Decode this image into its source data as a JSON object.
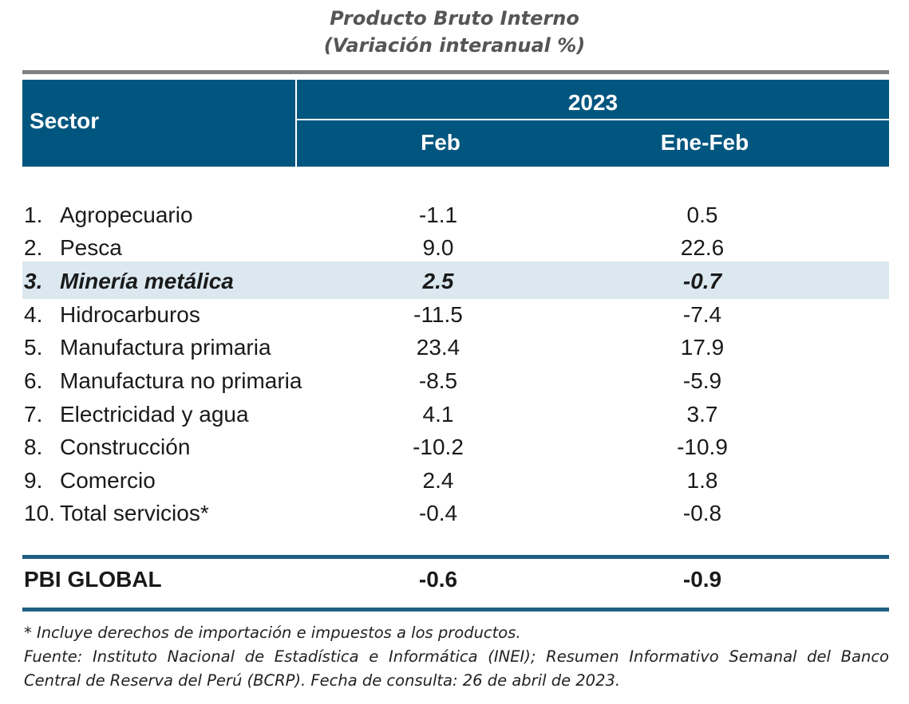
{
  "title": "Producto Bruto Interno",
  "subtitle": "(Variación interanual %)",
  "header": {
    "sector": "Sector",
    "year": "2023",
    "col1": "Feb",
    "col2": "Ene-Feb"
  },
  "rows": [
    {
      "num": "1.",
      "label": "Agropecuario",
      "feb": "-1.1",
      "enefeb": "0.5"
    },
    {
      "num": "2.",
      "label": "Pesca",
      "feb": "9.0",
      "enefeb": "22.6"
    },
    {
      "num": "3.",
      "label": "Minería metálica",
      "feb": "2.5",
      "enefeb": "-0.7"
    },
    {
      "num": "4.",
      "label": "Hidrocarburos",
      "feb": "-11.5",
      "enefeb": "-7.4"
    },
    {
      "num": "5.",
      "label": "Manufactura primaria",
      "feb": "23.4",
      "enefeb": "17.9"
    },
    {
      "num": "6.",
      "label": "Manufactura no primaria",
      "feb": "-8.5",
      "enefeb": "-5.9"
    },
    {
      "num": "7.",
      "label": "Electricidad y agua",
      "feb": "4.1",
      "enefeb": "3.7"
    },
    {
      "num": "8.",
      "label": "Construcción",
      "feb": "-10.2",
      "enefeb": "-10.9"
    },
    {
      "num": "9.",
      "label": "Comercio",
      "feb": "2.4",
      "enefeb": "1.8"
    },
    {
      "num": "10.",
      "label": "Total servicios*",
      "feb": "-0.4",
      "enefeb": "-0.8"
    }
  ],
  "total": {
    "label": "PBI GLOBAL",
    "feb": "-0.6",
    "enefeb": "-0.9"
  },
  "notes": {
    "n1": "* Incluye derechos de importación e impuestos a los productos.",
    "n2": "Fuente: Instituto Nacional de Estadística e Informática (INEI); Resumen Informativo Semanal del Banco",
    "n3": "Central de Reserva del Perú (BCRP). Fecha de consulta: 26 de abril de 2023."
  },
  "colors": {
    "header_bg": "#00567f",
    "highlight_bg": "#dbe8f0",
    "rule": "#1f5f82"
  }
}
